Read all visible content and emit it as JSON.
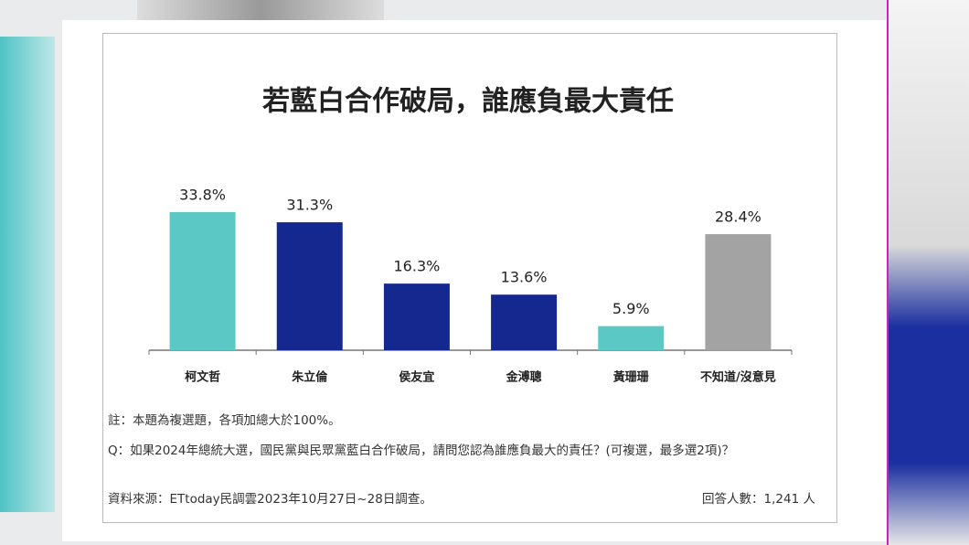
{
  "chart_data": {
    "type": "bar",
    "title": "若藍白合作破局，誰應負最大責任",
    "categories": [
      "柯文哲",
      "朱立倫",
      "侯友宜",
      "金溥聰",
      "黃珊珊",
      "不知道/沒意見"
    ],
    "values": [
      33.8,
      31.3,
      16.3,
      13.6,
      5.9,
      28.4
    ],
    "value_labels": [
      "33.8%",
      "31.3%",
      "16.3%",
      "13.6%",
      "5.9%",
      "28.4%"
    ],
    "colors": [
      "#5cc8c6",
      "#14288f",
      "#14288f",
      "#14288f",
      "#5cc8c6",
      "#a3a3a3"
    ],
    "notes": [
      "註：本題為複選題，各項加總大於100%。",
      "Q：如果2024年總統大選，國民黨與民眾黨藍白合作破局，請問您認為誰應負最大的責任？(可複選，最多選2項)？"
    ],
    "source": "資料來源：ETtoday民調雲2023年10月27日~28日調查。",
    "sample_size": "回答人數：1,241 人"
  }
}
